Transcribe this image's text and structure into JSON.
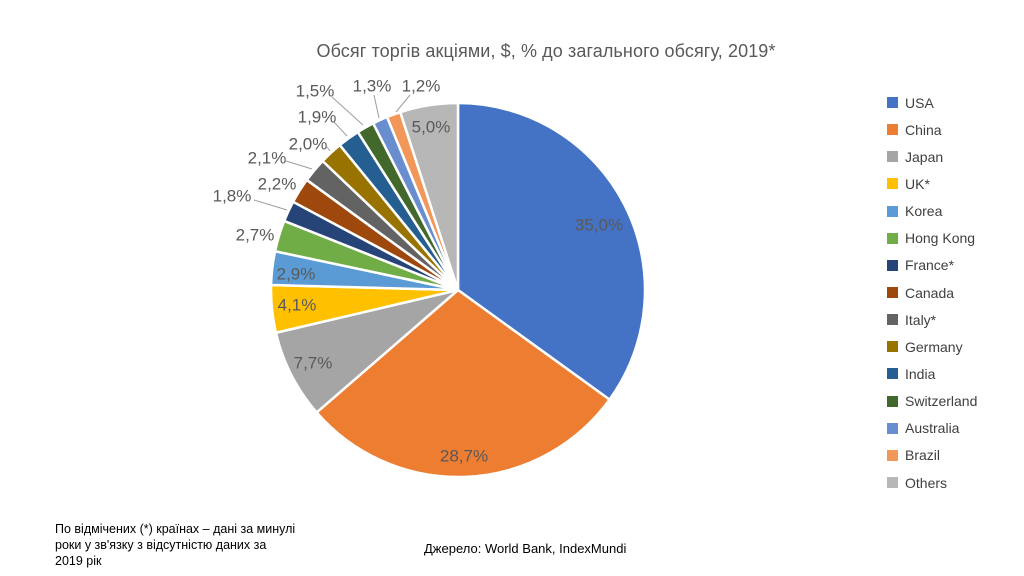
{
  "chart_data": {
    "type": "pie",
    "title": "Обсяг торгів акціями, $, % до загального обсягу, 2019*",
    "categories": [
      "USA",
      "China",
      "Japan",
      "UK*",
      "Korea",
      "Hong Kong",
      "France*",
      "Canada",
      "Italy*",
      "Germany",
      "India",
      "Switzerland",
      "Australia",
      "Brazil",
      "Others"
    ],
    "values": [
      35.0,
      28.7,
      7.7,
      4.1,
      2.9,
      2.7,
      1.8,
      2.2,
      2.1,
      2.0,
      1.9,
      1.5,
      1.3,
      1.2,
      5.0
    ],
    "labels": [
      "35,0%",
      "28,7%",
      "7,7%",
      "4,1%",
      "2,9%",
      "2,7%",
      "1,8%",
      "2,2%",
      "2,1%",
      "2,0%",
      "1,9%",
      "1,5%",
      "1,3%",
      "1,2%",
      "5,0%"
    ],
    "colors": [
      "#4472C4",
      "#ED7D31",
      "#A5A5A5",
      "#FFC000",
      "#5B9BD5",
      "#70AD47",
      "#264478",
      "#9E480E",
      "#636363",
      "#997300",
      "#255E91",
      "#43682B",
      "#698ED0",
      "#F1975A",
      "#B7B7B7"
    ],
    "start_angle_deg": 0,
    "direction": "clockwise",
    "legend_position": "right",
    "title_color": "#595959",
    "label_color": "#595959",
    "legend_text_color": "#404040",
    "leader_line_color": "#9E9E9E"
  },
  "footnote": {
    "text": "По відмічених (*) країнах – дані за минулі роки  у зв'язку з відсутністю даних за 2019 рік"
  },
  "source": {
    "text": "Джерело: World Bank, IndexMundi"
  }
}
